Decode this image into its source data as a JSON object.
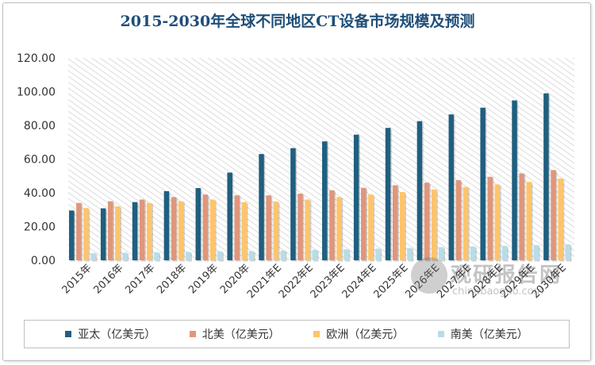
{
  "chart_data": {
    "type": "bar",
    "title": "2015-2030年全球不同地区CT设备市场规模及预测",
    "xlabel": "",
    "ylabel": "",
    "ylim": [
      0,
      120
    ],
    "yticks": [
      "0.00",
      "20.00",
      "40.00",
      "60.00",
      "80.00",
      "100.00",
      "120.00"
    ],
    "grid": false,
    "legend_position": "bottom",
    "categories": [
      "2015年",
      "2016年",
      "2017年",
      "2018年",
      "2019年",
      "2020年",
      "2021年E",
      "2022年E",
      "2023年E",
      "2024年E",
      "2025年E",
      "2026年E",
      "2027年E",
      "2028年E",
      "2029年E",
      "2030年E"
    ],
    "series": [
      {
        "name": "亚太（亿美元）",
        "color": "#1f5f7f",
        "values": [
          29.5,
          30.8,
          34.5,
          41.0,
          42.8,
          52.0,
          63.0,
          66.5,
          70.5,
          74.5,
          78.5,
          82.5,
          86.5,
          90.5,
          94.8,
          99.0
        ]
      },
      {
        "name": "北美（亿美元）",
        "color": "#e0967a",
        "values": [
          34.0,
          35.0,
          36.0,
          37.5,
          39.0,
          38.5,
          38.5,
          39.5,
          41.5,
          43.0,
          44.5,
          46.0,
          47.5,
          49.5,
          51.5,
          53.5
        ]
      },
      {
        "name": "欧洲（亿美元）",
        "color": "#ffc46b",
        "values": [
          31.0,
          32.0,
          34.0,
          35.0,
          36.0,
          34.5,
          34.8,
          36.0,
          37.5,
          39.0,
          40.5,
          42.0,
          43.5,
          45.0,
          46.5,
          48.5
        ]
      },
      {
        "name": "南美（亿美元）",
        "color": "#b7dde8",
        "values": [
          4.2,
          4.5,
          4.7,
          5.0,
          5.3,
          5.4,
          5.8,
          6.2,
          6.5,
          6.9,
          7.3,
          7.8,
          8.2,
          8.6,
          9.0,
          9.5
        ]
      }
    ]
  },
  "watermark": {
    "text": "观研报告网",
    "url": "chinabaogao.com"
  }
}
